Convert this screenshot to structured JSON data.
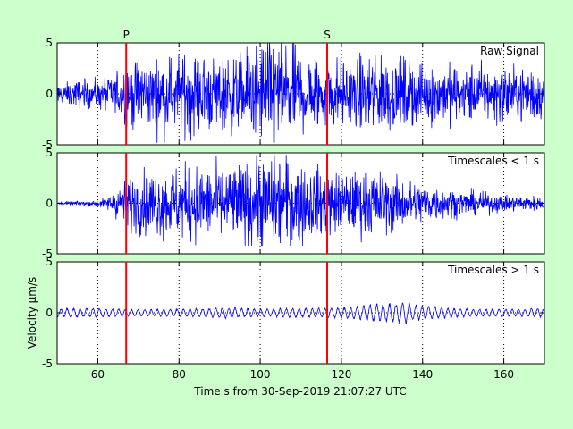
{
  "chart_data": {
    "type": "line",
    "xlabel": "Time s from 30-Sep-2019 21:07:27 UTC",
    "ylabel": "Velocity μm/s",
    "xlim": [
      50,
      170
    ],
    "x_ticks": [
      60,
      80,
      100,
      120,
      140,
      160
    ],
    "ylim": [
      -5,
      5
    ],
    "y_ticks": [
      -5,
      0,
      5
    ],
    "grid": true,
    "phase_markers": [
      {
        "label": "P",
        "x": 67
      },
      {
        "label": "S",
        "x": 116.5
      }
    ],
    "colors": {
      "background": "#ccffcc",
      "axes": "#ffffff",
      "trace": "#0000ff",
      "marker": "#ff0000"
    },
    "panels": [
      {
        "annotation": "Raw Signal",
        "envelope_x": [
          50,
          54,
          58,
          62,
          65,
          68,
          72,
          76,
          80,
          84,
          88,
          92,
          96,
          100,
          104,
          108,
          112,
          116,
          120,
          124,
          128,
          132,
          136,
          140,
          144,
          148,
          152,
          156,
          160,
          164,
          170
        ],
        "envelope_y": [
          0.6,
          0.8,
          0.8,
          1.0,
          1.6,
          1.8,
          2.0,
          2.1,
          2.3,
          2.3,
          2.3,
          2.2,
          2.5,
          3.0,
          3.2,
          2.8,
          2.4,
          2.2,
          2.0,
          2.0,
          2.5,
          2.2,
          2.0,
          1.8,
          1.8,
          1.7,
          1.7,
          1.6,
          1.6,
          1.6,
          1.6
        ],
        "peak_min": -4.8,
        "peak_max": 5.0
      },
      {
        "annotation": "Timescales < 1 s",
        "envelope_x": [
          50,
          54,
          58,
          62,
          65,
          68,
          72,
          76,
          80,
          84,
          88,
          92,
          96,
          100,
          104,
          108,
          112,
          116,
          120,
          124,
          128,
          132,
          136,
          140,
          144,
          148,
          152,
          156,
          160,
          164,
          170
        ],
        "envelope_y": [
          0.1,
          0.1,
          0.15,
          0.3,
          1.0,
          1.6,
          1.9,
          2.0,
          2.2,
          2.2,
          2.2,
          2.1,
          2.4,
          2.8,
          3.0,
          2.6,
          2.2,
          2.0,
          1.8,
          1.8,
          2.0,
          1.7,
          1.4,
          1.2,
          1.0,
          0.8,
          0.7,
          0.6,
          0.5,
          0.5,
          0.4
        ],
        "peak_min": -4.2,
        "peak_max": 4.8
      },
      {
        "annotation": "Timescales > 1 s",
        "envelope_x": [
          50,
          54,
          58,
          62,
          65,
          68,
          72,
          76,
          80,
          84,
          88,
          92,
          96,
          100,
          104,
          108,
          112,
          116,
          120,
          124,
          128,
          132,
          136,
          140,
          144,
          148,
          152,
          156,
          160,
          164,
          170
        ],
        "envelope_y": [
          0.45,
          0.5,
          0.5,
          0.45,
          0.4,
          0.35,
          0.35,
          0.4,
          0.4,
          0.45,
          0.5,
          0.6,
          0.5,
          0.4,
          0.45,
          0.5,
          0.5,
          0.5,
          0.6,
          0.7,
          0.9,
          1.0,
          1.1,
          0.7,
          0.6,
          0.5,
          0.4,
          0.4,
          0.4,
          0.4,
          0.5
        ],
        "peak_min": -1.7,
        "peak_max": 1.3
      }
    ]
  }
}
